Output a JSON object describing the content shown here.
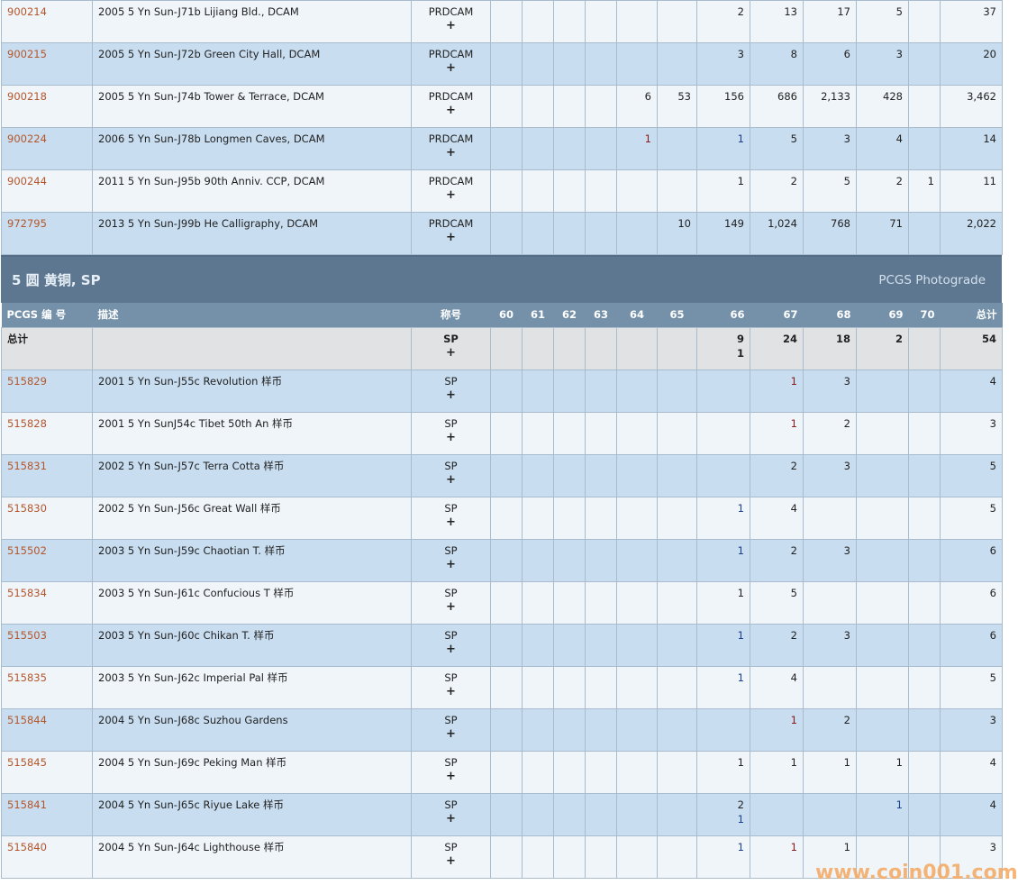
{
  "top_rows": [
    {
      "pcgs": "900214",
      "desc": "2005 5 Yn Sun-J71b Lijiang Bld., DCAM",
      "desig": "PRDCAM",
      "plus": "+",
      "g": [
        "",
        "",
        "",
        "",
        "",
        "",
        "2",
        "13",
        "17",
        "5",
        ""
      ],
      "total": "37"
    },
    {
      "pcgs": "900215",
      "desc": "2005 5 Yn Sun-J72b Green City Hall, DCAM",
      "desig": "PRDCAM",
      "plus": "+",
      "g": [
        "",
        "",
        "",
        "",
        "",
        "",
        "3",
        "8",
        "6",
        "3",
        ""
      ],
      "total": "20"
    },
    {
      "pcgs": "900218",
      "desc": "2005 5 Yn Sun-J74b Tower & Terrace, DCAM",
      "desig": "PRDCAM",
      "plus": "+",
      "g": [
        "",
        "",
        "",
        "",
        "6",
        "53",
        "156",
        "686",
        "2,133",
        "428",
        ""
      ],
      "total": "3,462"
    },
    {
      "pcgs": "900224",
      "desc": "2006 5 Yn Sun-J78b Longmen Caves, DCAM",
      "desig": "PRDCAM",
      "plus": "+",
      "g": [
        "",
        "",
        "",
        "",
        "1",
        "",
        "1",
        "5",
        "3",
        "4",
        ""
      ],
      "plus_g": {
        "4": "r",
        "6": "b"
      },
      "total": "14"
    },
    {
      "pcgs": "900244",
      "desc": "2011 5 Yn Sun-J95b 90th Anniv. CCP, DCAM",
      "desig": "PRDCAM",
      "plus": "+",
      "g": [
        "",
        "",
        "",
        "",
        "",
        "",
        "1",
        "2",
        "5",
        "2",
        "1"
      ],
      "total": "11"
    },
    {
      "pcgs": "972795",
      "desc": "2013 5 Yn Sun-J99b He Calligraphy, DCAM",
      "desig": "PRDCAM",
      "plus": "+",
      "g": [
        "",
        "",
        "",
        "",
        "",
        "10",
        "149",
        "1,024",
        "768",
        "71",
        ""
      ],
      "total": "2,022"
    }
  ],
  "section": {
    "title": "5 圆 黄铜, SP",
    "photograde_link": "PCGS Photograde"
  },
  "columns": {
    "pcgs": "PCGS 编 号",
    "desc": "描述",
    "desig": "称号",
    "grades": [
      "60",
      "61",
      "62",
      "63",
      "64",
      "65",
      "66",
      "67",
      "68",
      "69",
      "70"
    ],
    "total": "总计"
  },
  "total_row": {
    "label": "总计",
    "desig": "SP",
    "plus": "+",
    "g": [
      "",
      "",
      "",
      "",
      "",
      "",
      "9",
      "24",
      "18",
      "2",
      ""
    ],
    "g_plus": [
      "",
      "",
      "",
      "",
      "",
      "",
      "1",
      "",
      "",
      "",
      ""
    ],
    "total": "54"
  },
  "rows": [
    {
      "pcgs": "515829",
      "desc": "2001 5 Yn Sun-J55c Revolution 样币",
      "desig": "SP",
      "plus": "+",
      "g": [
        "",
        "",
        "",
        "",
        "",
        "",
        "",
        "1",
        "3",
        "",
        ""
      ],
      "color": {
        "7": "r"
      },
      "total": "4"
    },
    {
      "pcgs": "515828",
      "desc": "2001 5 Yn SunJ54c Tibet 50th An 样币",
      "desig": "SP",
      "plus": "+",
      "g": [
        "",
        "",
        "",
        "",
        "",
        "",
        "",
        "1",
        "2",
        "",
        ""
      ],
      "color": {
        "7": "r"
      },
      "total": "3"
    },
    {
      "pcgs": "515831",
      "desc": "2002 5 Yn Sun-J57c Terra Cotta 样币",
      "desig": "SP",
      "plus": "+",
      "g": [
        "",
        "",
        "",
        "",
        "",
        "",
        "",
        "2",
        "3",
        "",
        ""
      ],
      "total": "5"
    },
    {
      "pcgs": "515830",
      "desc": "2002 5 Yn Sun-J56c Great Wall 样币",
      "desig": "SP",
      "plus": "+",
      "g": [
        "",
        "",
        "",
        "",
        "",
        "",
        "1",
        "4",
        "",
        "",
        ""
      ],
      "color": {
        "6": "b"
      },
      "total": "5"
    },
    {
      "pcgs": "515502",
      "desc": "2003 5 Yn Sun-J59c Chaotian T. 样币",
      "desig": "SP",
      "plus": "+",
      "g": [
        "",
        "",
        "",
        "",
        "",
        "",
        "1",
        "2",
        "3",
        "",
        ""
      ],
      "color": {
        "6": "b"
      },
      "total": "6"
    },
    {
      "pcgs": "515834",
      "desc": "2003 5 Yn Sun-J61c Confucious T 样币",
      "desig": "SP",
      "plus": "+",
      "g": [
        "",
        "",
        "",
        "",
        "",
        "",
        "1",
        "5",
        "",
        "",
        ""
      ],
      "total": "6"
    },
    {
      "pcgs": "515503",
      "desc": "2003 5 Yn Sun-J60c Chikan T. 样币",
      "desig": "SP",
      "plus": "+",
      "g": [
        "",
        "",
        "",
        "",
        "",
        "",
        "1",
        "2",
        "3",
        "",
        ""
      ],
      "color": {
        "6": "b"
      },
      "total": "6"
    },
    {
      "pcgs": "515835",
      "desc": "2003 5 Yn Sun-J62c Imperial Pal 样币",
      "desig": "SP",
      "plus": "+",
      "g": [
        "",
        "",
        "",
        "",
        "",
        "",
        "1",
        "4",
        "",
        "",
        ""
      ],
      "color": {
        "6": "b"
      },
      "total": "5"
    },
    {
      "pcgs": "515844",
      "desc": "2004 5 Yn Sun-J68c Suzhou Gardens",
      "desig": "SP",
      "plus": "+",
      "g": [
        "",
        "",
        "",
        "",
        "",
        "",
        "",
        "1",
        "2",
        "",
        ""
      ],
      "color": {
        "7": "r"
      },
      "total": "3"
    },
    {
      "pcgs": "515845",
      "desc": "2004 5 Yn Sun-J69c Peking Man 样币",
      "desig": "SP",
      "plus": "+",
      "g": [
        "",
        "",
        "",
        "",
        "",
        "",
        "1",
        "1",
        "1",
        "1",
        ""
      ],
      "total": "4"
    },
    {
      "pcgs": "515841",
      "desc": "2004 5 Yn Sun-J65c Riyue Lake 样币",
      "desig": "SP",
      "plus": "+",
      "g": [
        "",
        "",
        "",
        "",
        "",
        "",
        "2",
        "",
        "",
        "1",
        ""
      ],
      "g_plus": [
        "",
        "",
        "",
        "",
        "",
        "",
        "1",
        "",
        "",
        "",
        ""
      ],
      "color": {
        "9": "b"
      },
      "total": "4"
    },
    {
      "pcgs": "515840",
      "desc": "2004 5 Yn Sun-J64c Lighthouse 样币",
      "desig": "SP",
      "plus": "+",
      "g": [
        "",
        "",
        "",
        "",
        "",
        "",
        "1",
        "1",
        "1",
        "",
        ""
      ],
      "color": {
        "6": "b",
        "7": "r"
      },
      "total": "3"
    }
  ],
  "watermark": "www.coin001.com",
  "colors": {
    "pcgs_link": "#b5562a",
    "section_bg": "#5d7790",
    "header_bg": "#7591aa",
    "row_even": "#c8ddf0",
    "row_odd": "#f0f5fa",
    "total_bg": "#e1e2e3"
  }
}
